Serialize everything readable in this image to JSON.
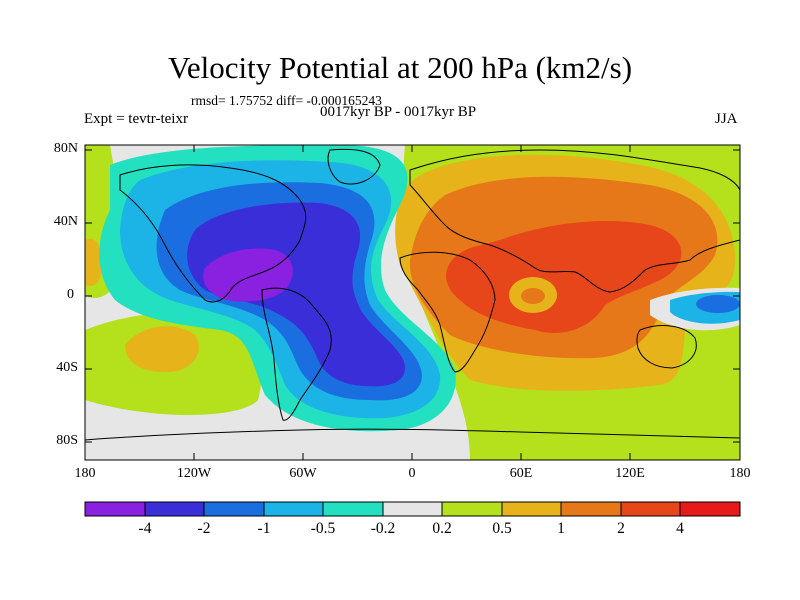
{
  "header": {
    "title": "Velocity Potential at 200 hPa (km2/s)",
    "stats": "rmsd= 1.75752 diff= -0.000165243",
    "left_string": "Expt = tevtr-teixr",
    "center_string": "0017kyr BP - 0017kyr BP",
    "right_string": "JJA"
  },
  "axes": {
    "y_ticks": [
      "80N",
      "40N",
      "0",
      "40S",
      "80S"
    ],
    "x_ticks": [
      "180",
      "120W",
      "60W",
      "0",
      "60E",
      "120E",
      "180"
    ]
  },
  "colorbar": {
    "labels": [
      "-4",
      "-2",
      "-1",
      "-0.5",
      "-0.2",
      "0.2",
      "0.5",
      "1",
      "2",
      "4"
    ],
    "colors": [
      "#8a20e0",
      "#3a2ed8",
      "#1a6ee0",
      "#1cb4e6",
      "#22e0c0",
      "#e6e6e6",
      "#b4e01c",
      "#e6b41a",
      "#e6781a",
      "#e6461a",
      "#e61a1a"
    ]
  },
  "map_colors": {
    "purple": "#8a20e0",
    "blue": "#3a2ed8",
    "mid_blue": "#1a6ee0",
    "light_blue": "#1cb4e6",
    "cyan": "#22e0c0",
    "gray": "#e6e6e6",
    "yellow_green": "#b4e01c",
    "gold": "#e6b41a",
    "orange": "#e6781a",
    "red_orange": "#e6461a"
  }
}
